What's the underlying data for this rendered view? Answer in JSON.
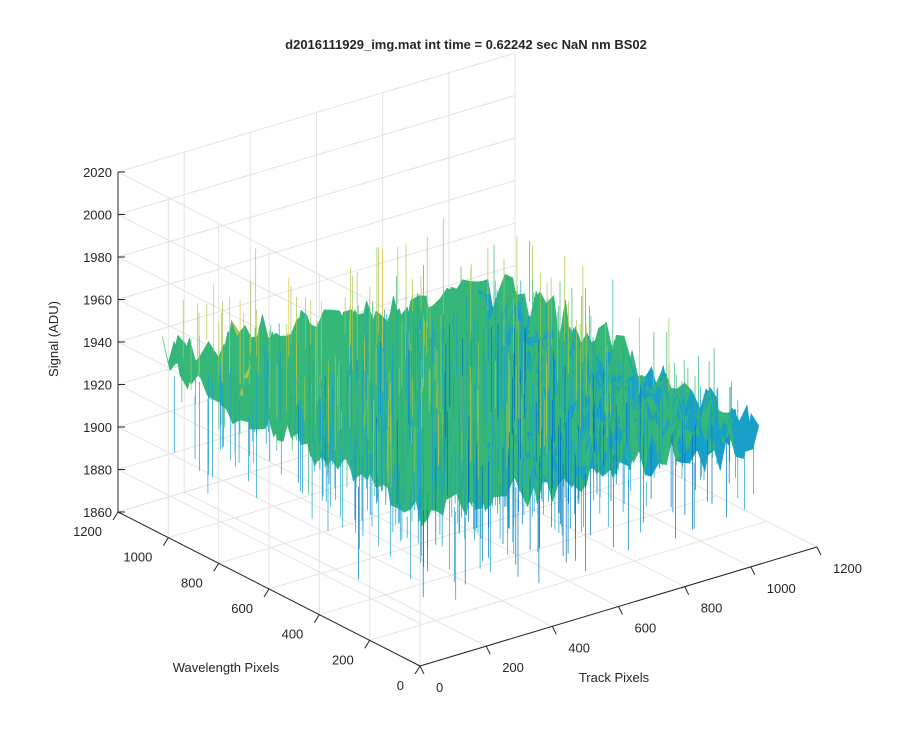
{
  "chart_data": {
    "type": "surface",
    "title": "d2016111929_img.mat int time = 0.62242 sec  NaN nm BS02",
    "xlabel": "Track Pixels",
    "ylabel": "Wavelength Pixels",
    "zlabel": "Signal (ADU)",
    "xlim": [
      0,
      1200
    ],
    "ylim": [
      0,
      1200
    ],
    "zlim": [
      1860,
      2020
    ],
    "x_ticks": [
      0,
      200,
      400,
      600,
      800,
      1000,
      1200
    ],
    "y_ticks": [
      0,
      200,
      400,
      600,
      800,
      1000,
      1200
    ],
    "z_ticks": [
      1860,
      1880,
      1900,
      1920,
      1940,
      1960,
      1980,
      2000,
      2020
    ],
    "x_tick_labels": [
      "0",
      "200",
      "400",
      "600",
      "800",
      "1000",
      "1200"
    ],
    "y_tick_labels": [
      "0",
      "200",
      "400",
      "600",
      "800",
      "1000",
      "1200"
    ],
    "z_tick_labels": [
      "1860",
      "1880",
      "1900",
      "1920",
      "1940",
      "1960",
      "1980",
      "2000",
      "2020"
    ],
    "surface_extent": {
      "x": [
        0,
        1024
      ],
      "y": [
        0,
        1024
      ]
    },
    "mean_signal": 1935,
    "signal_range": [
      1880,
      1990
    ],
    "grid": true,
    "colormap": "parula",
    "colors": [
      "#0072bd",
      "#19a0c8",
      "#35b779",
      "#a8c84a",
      "#e8c23a"
    ]
  }
}
